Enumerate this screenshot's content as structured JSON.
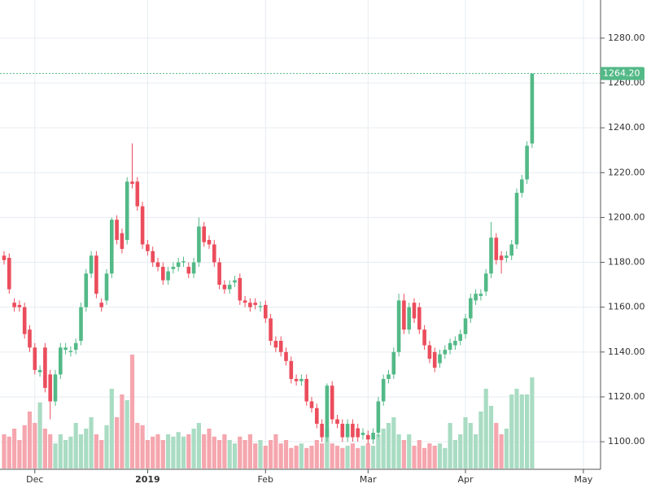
{
  "chart_data": {
    "type": "candlestick",
    "categories": [
      null,
      null,
      null,
      null,
      null,
      null,
      "Dec",
      null,
      null,
      null,
      null,
      null,
      null,
      null,
      null,
      null,
      null,
      null,
      null,
      null,
      null,
      null,
      null,
      null,
      null,
      null,
      null,
      null,
      "2019",
      null,
      null,
      null,
      null,
      null,
      null,
      null,
      null,
      null,
      null,
      null,
      null,
      null,
      null,
      null,
      null,
      null,
      null,
      null,
      null,
      null,
      null,
      "Feb",
      null,
      null,
      null,
      null,
      null,
      null,
      null,
      null,
      null,
      null,
      null,
      null,
      null,
      null,
      null,
      null,
      null,
      null,
      null,
      "Mar",
      null,
      null,
      null,
      null,
      null,
      null,
      null,
      null,
      null,
      null,
      null,
      null,
      null,
      null,
      null,
      null,
      null,
      null,
      "Apr",
      null,
      null,
      null,
      null,
      null,
      null,
      null,
      null,
      null,
      null,
      null,
      null,
      null,
      null,
      null,
      null,
      null,
      null,
      null,
      null,
      null,
      null,
      "May"
    ],
    "open": [
      1183,
      1182,
      1162,
      1161,
      1160,
      1150,
      1142,
      1131,
      1142,
      1130,
      1118,
      1130,
      1141,
      1140,
      1141,
      1145,
      1160,
      1175,
      1183,
      1162,
      1163,
      1175,
      1199,
      1193,
      1190,
      1216,
      1216,
      1205,
      1188,
      1185,
      1180,
      1178,
      1172,
      1177,
      1178,
      1180,
      1178,
      1175,
      1180,
      1196,
      1190,
      1188,
      1180,
      1170,
      1168,
      1171,
      1173,
      1163,
      1162,
      1162,
      1160,
      1161,
      1155,
      1145,
      1145,
      1140,
      1136,
      1128,
      1127,
      1128,
      1118,
      1115,
      1108,
      1102,
      1125,
      1110,
      1108,
      1102,
      1108,
      1106,
      1103,
      1103,
      1101,
      1104,
      1118,
      1128,
      1130,
      1140,
      1163,
      1150,
      1162,
      1160,
      1150,
      1143,
      1140,
      1135,
      1139,
      1141,
      1143,
      1145,
      1148,
      1155,
      1163,
      1165,
      1167,
      1175,
      1191,
      1183,
      1182,
      1183,
      1188,
      1211,
      1217,
      1233,
      null,
      null,
      null,
      null,
      null,
      null,
      null,
      null,
      null,
      null
    ],
    "high": [
      1185,
      1184,
      1164,
      1163,
      1162,
      1152,
      1144,
      1134,
      1144,
      1132,
      1132,
      1144,
      1144,
      1142.5,
      1146,
      1162,
      1177,
      1185,
      1185,
      1164,
      1177,
      1200,
      1201,
      1195,
      1218,
      1233,
      1218,
      1207,
      1190,
      1187,
      1182,
      1180,
      1178,
      1180,
      1182,
      1182.5,
      1180,
      1182,
      1200,
      1198,
      1192,
      1190,
      1182,
      1172,
      1172,
      1174,
      1175,
      1165,
      1164,
      1164,
      1162.5,
      1163,
      1157,
      1147,
      1147,
      1142,
      1138,
      1130,
      1130,
      1130,
      1120,
      1117,
      1110,
      1126,
      1127,
      1112,
      1110,
      1110,
      1110,
      1108,
      1106,
      1105,
      1106,
      1120,
      1130,
      1132,
      1142,
      1166,
      1166,
      1162,
      1164,
      1162,
      1152,
      1145,
      1142,
      1141,
      1143,
      1146,
      1147,
      1150,
      1157,
      1166,
      1168,
      1168,
      1177,
      1198,
      1193,
      1185,
      1185,
      1190,
      1213,
      1219,
      1234,
      1264.2,
      null,
      null,
      null,
      null,
      null,
      null,
      null,
      null,
      null,
      null
    ],
    "low": [
      1179,
      1166,
      1158,
      1158,
      1146,
      1140,
      1130,
      1129,
      1122,
      1110,
      1116,
      1128,
      1139,
      1138,
      1139,
      1143,
      1158,
      1173,
      1164,
      1158,
      1161,
      1173,
      1188,
      1184,
      1188,
      1213,
      1203,
      1186,
      1183,
      1178,
      1176,
      1170,
      1170,
      1175,
      1176,
      1178,
      1173,
      1173,
      1178,
      1187,
      1186,
      1178,
      1168,
      1166,
      1166,
      1169,
      1161,
      1160,
      1158,
      1159,
      1158,
      1153,
      1143,
      1140,
      1138,
      1134,
      1126,
      1125,
      1125,
      1116,
      1113,
      1106,
      1100,
      1100,
      1108,
      1106,
      1100,
      1100,
      1100,
      1100,
      1101,
      1099,
      1099,
      1102,
      1116,
      1126,
      1128,
      1138,
      1148,
      1148,
      1153,
      1148,
      1141,
      1135,
      1131,
      1133,
      1137,
      1139,
      1141,
      1143,
      1146,
      1153,
      1161,
      1163,
      1165,
      1173,
      1179,
      1175,
      1180,
      1181,
      1186,
      1209,
      1215,
      1231,
      null,
      null,
      null,
      null,
      null,
      null,
      null,
      null,
      null,
      null
    ],
    "close": [
      1181,
      1168,
      1160,
      1160,
      1148,
      1142,
      1132,
      1132,
      1124,
      1118,
      1130,
      1142,
      1142,
      1140.5,
      1144,
      1160,
      1175,
      1183,
      1166,
      1160,
      1175,
      1199,
      1190,
      1186,
      1216,
      1215,
      1205,
      1188,
      1185,
      1180,
      1178,
      1172,
      1176,
      1178,
      1180,
      1180.5,
      1175,
      1180,
      1196,
      1189,
      1188,
      1180,
      1170,
      1168,
      1170,
      1172,
      1163,
      1162,
      1160,
      1161,
      1160.5,
      1155,
      1145,
      1142,
      1140,
      1136,
      1128,
      1127,
      1128,
      1118,
      1115,
      1108,
      1102,
      1125,
      1110,
      1108,
      1102,
      1108,
      1102,
      1102,
      1104,
      1101,
      1104,
      1118,
      1128,
      1130,
      1140,
      1163,
      1150,
      1160,
      1155,
      1150,
      1143,
      1137,
      1133,
      1139,
      1141,
      1144,
      1145,
      1148,
      1155,
      1164,
      1166,
      1166,
      1175,
      1191,
      1181,
      1181,
      1183,
      1188,
      1211,
      1217,
      1232,
      1264.2,
      null,
      null,
      null,
      null,
      null,
      null,
      null,
      null,
      null,
      null
    ],
    "volume": [
      30,
      28,
      35,
      25,
      38,
      50,
      40,
      58,
      35,
      30,
      22,
      30,
      25,
      28,
      40,
      30,
      35,
      45,
      30,
      25,
      38,
      70,
      45,
      65,
      60,
      100,
      40,
      38,
      25,
      28,
      30,
      25,
      30,
      28,
      32,
      28,
      30,
      35,
      40,
      30,
      35,
      28,
      25,
      30,
      25,
      22,
      28,
      25,
      30,
      22,
      25,
      20,
      25,
      30,
      22,
      25,
      18,
      20,
      22,
      18,
      20,
      25,
      22,
      35,
      22,
      20,
      18,
      20,
      22,
      18,
      20,
      22,
      20,
      30,
      35,
      40,
      45,
      30,
      25,
      30,
      20,
      25,
      18,
      22,
      20,
      22,
      18,
      40,
      25,
      30,
      45,
      40,
      30,
      50,
      70,
      55,
      40,
      30,
      35,
      65,
      70,
      65,
      65,
      80,
      null,
      null,
      null,
      null,
      null,
      null,
      null,
      null,
      null,
      null
    ],
    "up_color": "#53b987",
    "down_color": "#eb4d5c",
    "volume_up_color": "#a9dcc3",
    "volume_down_color": "#f5a6ae",
    "ylim": [
      1087.7,
      1297
    ],
    "yticks": [
      {
        "value": 1100,
        "label": "1100.00"
      },
      {
        "value": 1120,
        "label": "1120.00"
      },
      {
        "value": 1140,
        "label": "1140.00"
      },
      {
        "value": 1160,
        "label": "1160.00"
      },
      {
        "value": 1180,
        "label": "1180.00"
      },
      {
        "value": 1200,
        "label": "1200.00"
      },
      {
        "value": 1220,
        "label": "1220.00"
      },
      {
        "value": 1240,
        "label": "1240.00"
      },
      {
        "value": 1260,
        "label": "1260.00"
      },
      {
        "value": 1280,
        "label": "1280.00"
      }
    ],
    "last_price": {
      "value": 1264.2,
      "label": "1264.20"
    },
    "grid": true
  }
}
